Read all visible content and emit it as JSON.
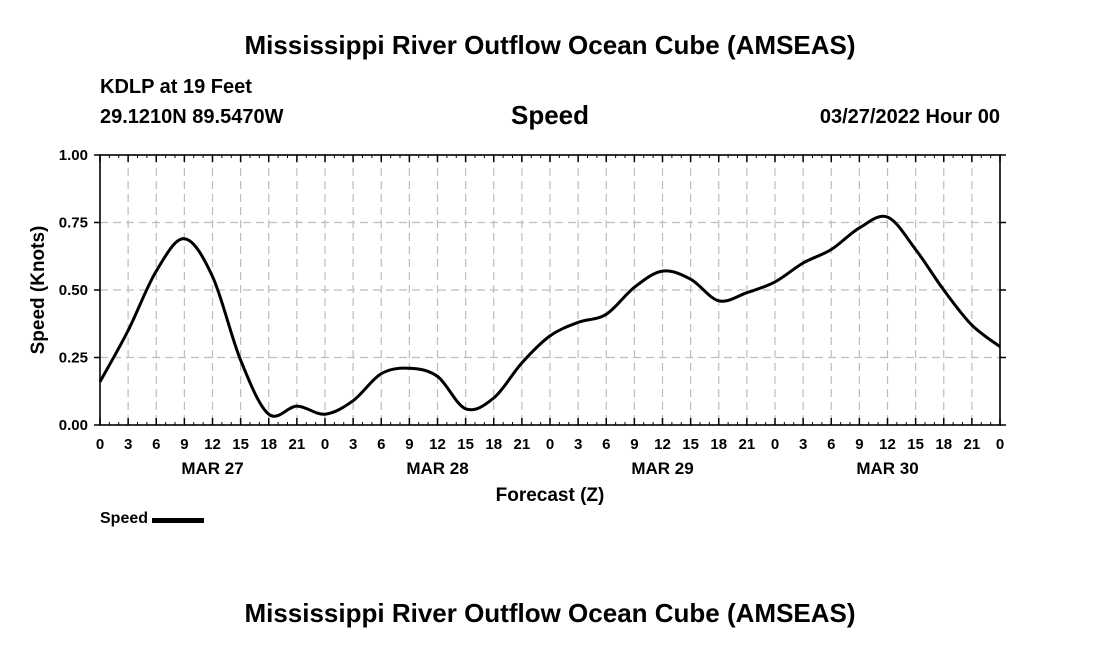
{
  "page": {
    "title": "Mississippi River Outflow Ocean Cube (AMSEAS)",
    "station": "KDLP at 19 Feet",
    "coordinates": "29.1210N  89.5470W",
    "datetime": "03/27/2022 Hour 00",
    "footer_title": "Mississippi River Outflow Ocean Cube (AMSEAS)"
  },
  "chart_data": {
    "type": "line",
    "title": "Speed",
    "xlabel": "Forecast (Z)",
    "ylabel": "Speed (Knots)",
    "ylim": [
      0,
      1.0
    ],
    "xlim": [
      0,
      96
    ],
    "yticks": [
      "0.00",
      "0.25",
      "0.50",
      "0.75",
      "1.00"
    ],
    "ytick_values": [
      0,
      0.25,
      0.5,
      0.75,
      1.0
    ],
    "xtick_labels": [
      "0",
      "3",
      "6",
      "9",
      "12",
      "15",
      "18",
      "21",
      "0",
      "3",
      "6",
      "9",
      "12",
      "15",
      "18",
      "21",
      "0",
      "3",
      "6",
      "9",
      "12",
      "15",
      "18",
      "21",
      "0",
      "3",
      "6",
      "9",
      "12",
      "15",
      "18",
      "21",
      "0"
    ],
    "day_labels": [
      {
        "label": "MAR 27",
        "hour": 12
      },
      {
        "label": "MAR 28",
        "hour": 36
      },
      {
        "label": "MAR 29",
        "hour": 60
      },
      {
        "label": "MAR 30",
        "hour": 84
      }
    ],
    "grid": true,
    "legend": "bottom-left",
    "series": [
      {
        "name": "Speed",
        "x": [
          0,
          3,
          6,
          9,
          12,
          15,
          18,
          21,
          24,
          27,
          30,
          33,
          36,
          39,
          42,
          45,
          48,
          51,
          54,
          57,
          60,
          63,
          66,
          69,
          72,
          75,
          78,
          81,
          84,
          87,
          90,
          93,
          96
        ],
        "values": [
          0.16,
          0.35,
          0.57,
          0.69,
          0.55,
          0.24,
          0.04,
          0.07,
          0.04,
          0.09,
          0.19,
          0.21,
          0.18,
          0.06,
          0.1,
          0.23,
          0.33,
          0.38,
          0.41,
          0.51,
          0.57,
          0.54,
          0.46,
          0.49,
          0.53,
          0.6,
          0.65,
          0.73,
          0.77,
          0.65,
          0.5,
          0.37,
          0.29
        ]
      }
    ]
  },
  "legend": {
    "label": "Speed"
  }
}
